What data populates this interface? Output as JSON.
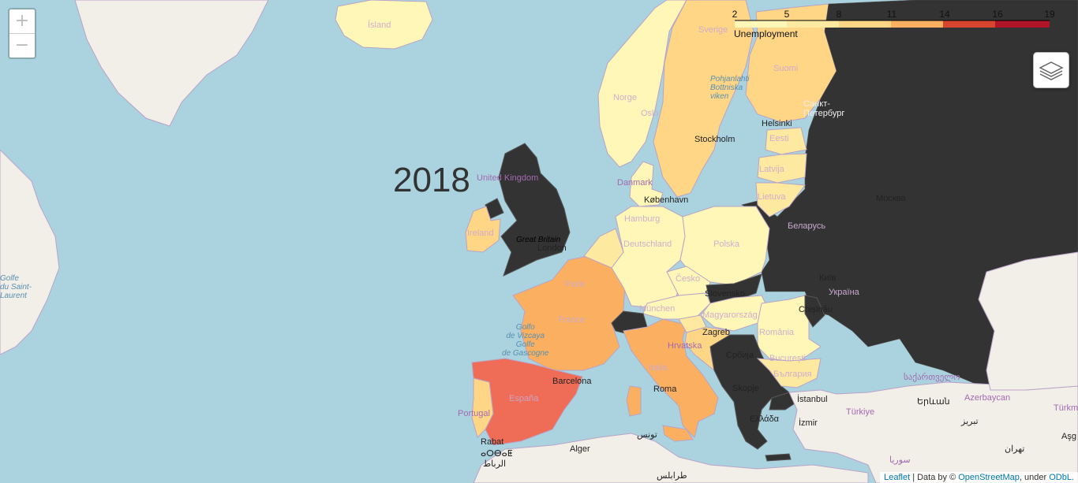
{
  "year_label": "2018",
  "legend": {
    "title": "Unemployment",
    "ticks": [
      "2",
      "5",
      "8",
      "11",
      "14",
      "16",
      "19"
    ],
    "tick_values": [
      2,
      5,
      8,
      11,
      14,
      16,
      19
    ],
    "colors": {
      "very_low": "#fff7b7",
      "low": "#fee9a0",
      "mid_low": "#fed686",
      "mid": "#fbb061",
      "high": "#ef6c57",
      "very_high": "#d83a2e",
      "max": "#b01427",
      "no_data": "#333333"
    }
  },
  "zoom": {
    "in_label": "+",
    "out_label": "−"
  },
  "layers_icon": "layers-icon",
  "attribution": {
    "leaflet": "Leaflet",
    "data_by": "| Data by ©",
    "osm": "OpenStreetMap",
    "under": ", under",
    "odbl": "ODbL."
  },
  "labels": {
    "island": "Ísland",
    "sverige": "Sverige",
    "suomi": "Suomi",
    "norge": "Norge",
    "oslo": "Oslo",
    "stockholm": "Stockholm",
    "helsinki": "Helsinki",
    "spb": "Санкт-\nПетербург",
    "eesti": "Eesti",
    "latvija": "Latvija",
    "lietuva": "Lietuva",
    "danmark": "Danmark",
    "kobenhavn": "København",
    "uk": "United Kingdom",
    "great_britain": "Great Britain",
    "london": "London",
    "ireland": "Ireland",
    "hamburg": "Hamburg",
    "deutschland": "Deutschland",
    "polska": "Polska",
    "moskva": "Москва",
    "belarus": "Беларусь",
    "paris": "Paris",
    "france": "France",
    "cesko": "Česko",
    "slovensko": "Slovensko",
    "kyiv": "Київ",
    "ukraina": "Україна",
    "munchen": "München",
    "magyarorszag": "Magyarország",
    "chisinau": "Chișinău",
    "zagreb": "Zagreb",
    "hrvatska": "Hrvatska",
    "romania": "România",
    "bucuresti": "București",
    "italia": "Italia",
    "srbija": "Србија",
    "balgariya": "България",
    "roma": "Roma",
    "skopje": "Skopje",
    "barcelona": "Barcelona",
    "espana": "España",
    "portugal": "Portugal",
    "ellada": "Ελλάδα",
    "istanbul": "İstanbul",
    "turkiye": "Türkiye",
    "izmir": "İzmir",
    "georgia": "საქართველო",
    "yerevan": "Երևան",
    "tabriz": "تبریز",
    "azerbaycan": "Azerbaycan",
    "turkm": "Türkm",
    "asg": "Aşg",
    "tunis": "تونس",
    "alger": "Alger",
    "rabat_1": "Rabat",
    "rabat_2": "ⴰⵔⴱⴰⵟ",
    "rabat_3": "الرباط",
    "tarabulus": "طرابلس",
    "suriya": "سوريا",
    "tehran": "تهران",
    "bothnia": "Pohjanlahti\nBottniska\nviken",
    "biscay": "Golfo\nde Vizcaya\nGolfe\nde Gascogne",
    "golfe_stl": "Golfe\ndu Saint-\nLaurent"
  }
}
